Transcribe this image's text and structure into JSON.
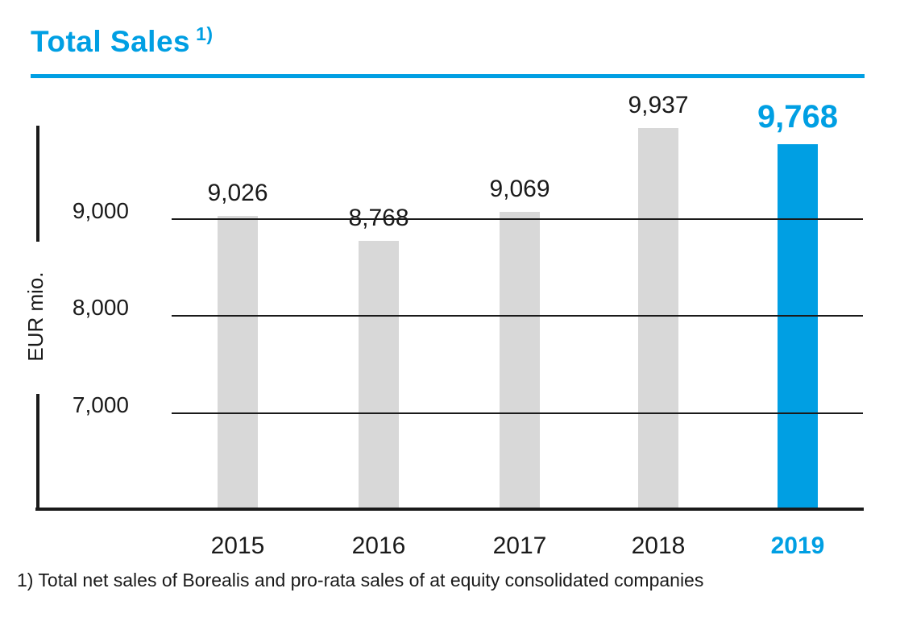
{
  "header": {
    "title": "Total Sales",
    "footnote_marker": "1)"
  },
  "y_axis": {
    "label": "EUR mio."
  },
  "footnote": "1) Total net sales of Borealis and pro-rata sales of at equity consolidated companies",
  "colors": {
    "accent_blue": "#009fe3",
    "bar_gray": "#d8d8d8",
    "axis_black": "#1a1a1a",
    "text_black": "#1a1a1a"
  },
  "chart_data": {
    "type": "bar",
    "title": "Total Sales 1)",
    "unit": "EUR mio.",
    "categories": [
      "2015",
      "2016",
      "2017",
      "2018",
      "2019"
    ],
    "values": [
      9026,
      8768,
      9069,
      9937,
      9768
    ],
    "value_labels": [
      "9,026",
      "8,768",
      "9,069",
      "9,937",
      "9,768"
    ],
    "highlight_index": 4,
    "highlight_category": "2019",
    "yticks": [
      7000,
      8000,
      9000
    ],
    "ytick_labels": [
      "7,000",
      "8,000",
      "9,000"
    ],
    "ylim": [
      6000,
      10300
    ],
    "ylabel": "EUR mio.",
    "xlabel": "",
    "grid": "horizontal",
    "gridlines_drawn_over_bars": true,
    "legend": "none"
  }
}
